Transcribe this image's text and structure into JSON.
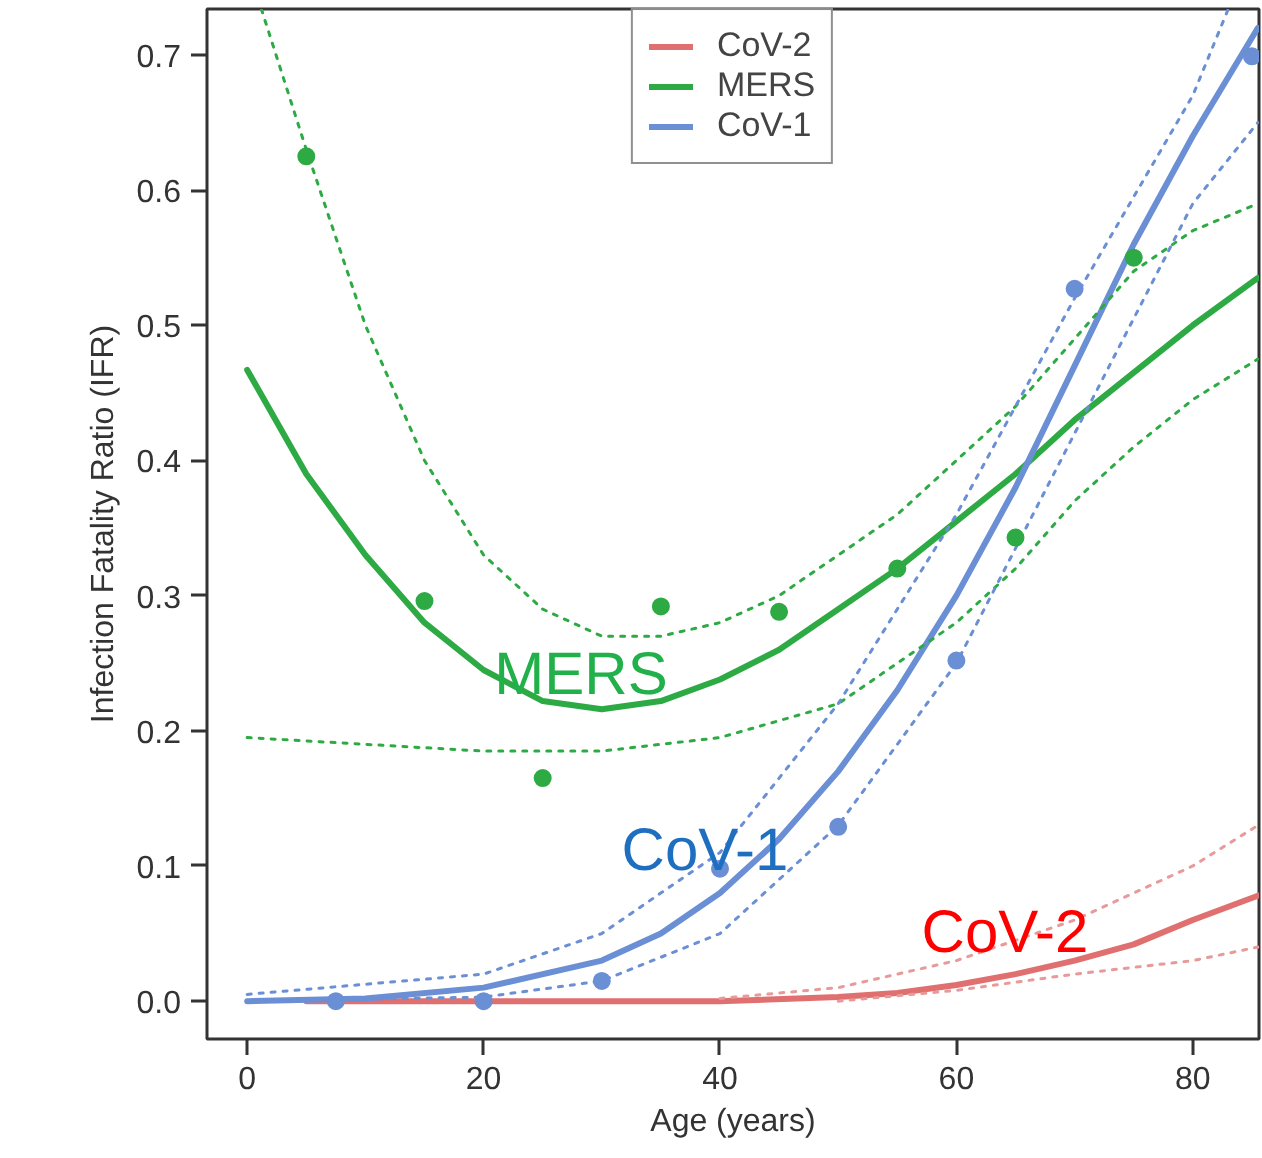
{
  "chart_data": {
    "type": "line",
    "xlabel": "Age (years)",
    "ylabel": "Infection Fatality Ratio (IFR)",
    "xlim": [
      -3.4,
      85.6
    ],
    "ylim": [
      -0.028,
      0.734
    ],
    "xticks": [
      0,
      20,
      40,
      60,
      80
    ],
    "yticks": [
      {
        "value": 0,
        "label": "0.0"
      },
      0.1,
      0.2,
      0.3,
      0.4,
      0.5,
      0.6,
      0.7
    ],
    "grid": false,
    "legend": "top",
    "series": [
      {
        "name": "CoV-2",
        "color": "#e07070",
        "line_style": "solid",
        "x": [
          5,
          20,
          40,
          50,
          55,
          60,
          65,
          70,
          75,
          80,
          85.5
        ],
        "values": [
          0,
          0,
          0.0,
          0.003,
          0.006,
          0.012,
          0.02,
          0.03,
          0.042,
          0.06,
          0.078
        ]
      },
      {
        "name": "MERS",
        "color": "#2eaa44",
        "line_style": "solid",
        "x": [
          0,
          5,
          10,
          15,
          20,
          25,
          30,
          35,
          40,
          45,
          50,
          55,
          60,
          65,
          70,
          75,
          80,
          85.5
        ],
        "values": [
          0.467,
          0.39,
          0.33,
          0.28,
          0.245,
          0.222,
          0.216,
          0.222,
          0.238,
          0.26,
          0.29,
          0.32,
          0.355,
          0.39,
          0.43,
          0.465,
          0.5,
          0.535
        ]
      },
      {
        "name": "CoV-1",
        "color": "#6a8fd4",
        "line_style": "solid",
        "x": [
          0,
          10,
          20,
          30,
          35,
          40,
          45,
          50,
          55,
          60,
          65,
          70,
          75,
          80,
          85.5
        ],
        "values": [
          0.0,
          0.002,
          0.01,
          0.03,
          0.05,
          0.08,
          0.12,
          0.17,
          0.23,
          0.3,
          0.38,
          0.47,
          0.56,
          0.64,
          0.72
        ]
      },
      {
        "type": "line",
        "color": "#e89a9a",
        "line_style": "dotted",
        "x": [
          40,
          50,
          60,
          70,
          80,
          85.5
        ],
        "values": [
          0.002,
          0.01,
          0.03,
          0.06,
          0.1,
          0.13
        ]
      },
      {
        "type": "line",
        "color": "#e89a9a",
        "line_style": "dotted",
        "x": [
          50,
          60,
          70,
          80,
          85.5
        ],
        "values": [
          0.0,
          0.008,
          0.02,
          0.03,
          0.04
        ]
      },
      {
        "type": "line",
        "color": "#2eaa44",
        "line_style": "dotted",
        "x": [
          1.2,
          5,
          10,
          15,
          20,
          25,
          30,
          35,
          40,
          45,
          50,
          55,
          60,
          65,
          70,
          75,
          80,
          85.5
        ],
        "values": [
          0.734,
          0.63,
          0.5,
          0.4,
          0.33,
          0.29,
          0.27,
          0.27,
          0.28,
          0.3,
          0.33,
          0.36,
          0.4,
          0.44,
          0.49,
          0.54,
          0.57,
          0.59
        ]
      },
      {
        "type": "line",
        "color": "#2eaa44",
        "line_style": "dotted",
        "x": [
          0,
          10,
          20,
          30,
          40,
          50,
          60,
          65,
          70,
          75,
          80,
          85.5
        ],
        "values": [
          0.195,
          0.19,
          0.185,
          0.185,
          0.195,
          0.22,
          0.28,
          0.32,
          0.37,
          0.41,
          0.445,
          0.475
        ]
      },
      {
        "type": "line",
        "color": "#6a8fd4",
        "line_style": "dotted",
        "x": [
          0,
          20,
          30,
          40,
          50,
          60,
          70,
          80,
          83
        ],
        "values": [
          0.005,
          0.02,
          0.05,
          0.11,
          0.22,
          0.36,
          0.52,
          0.67,
          0.734
        ]
      },
      {
        "type": "line",
        "color": "#6a8fd4",
        "line_style": "dotted",
        "x": [
          0,
          20,
          30,
          40,
          50,
          60,
          70,
          80,
          85.5
        ],
        "values": [
          0.0,
          0.003,
          0.015,
          0.05,
          0.13,
          0.25,
          0.42,
          0.59,
          0.65
        ]
      },
      {
        "type": "scatter",
        "color": "#2eaa44",
        "marker": "circle",
        "x": [
          5,
          15,
          25,
          35,
          45,
          55,
          65,
          75
        ],
        "values": [
          0.625,
          0.296,
          0.165,
          0.292,
          0.288,
          0.32,
          0.343,
          0.55
        ]
      },
      {
        "type": "scatter",
        "color": "#6a8fd4",
        "marker": "circle",
        "x": [
          7.5,
          20,
          30,
          40,
          50,
          60,
          70,
          85
        ],
        "values": [
          0.0,
          0.0,
          0.015,
          0.098,
          0.129,
          0.252,
          0.527,
          0.699
        ]
      }
    ],
    "annotations": [
      "MERS",
      "CoV-1",
      "CoV-2"
    ]
  }
}
